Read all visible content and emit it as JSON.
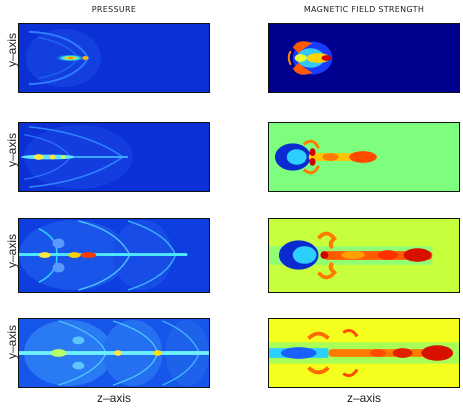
{
  "figure": {
    "columns": [
      {
        "title": "PRESSURE",
        "x_axis_label": "z–axis"
      },
      {
        "title": "MAGNETIC FIELD STRENGTH",
        "x_axis_label": "z–axis"
      }
    ],
    "y_axis_label": "y–axis",
    "rows": 4
  }
}
